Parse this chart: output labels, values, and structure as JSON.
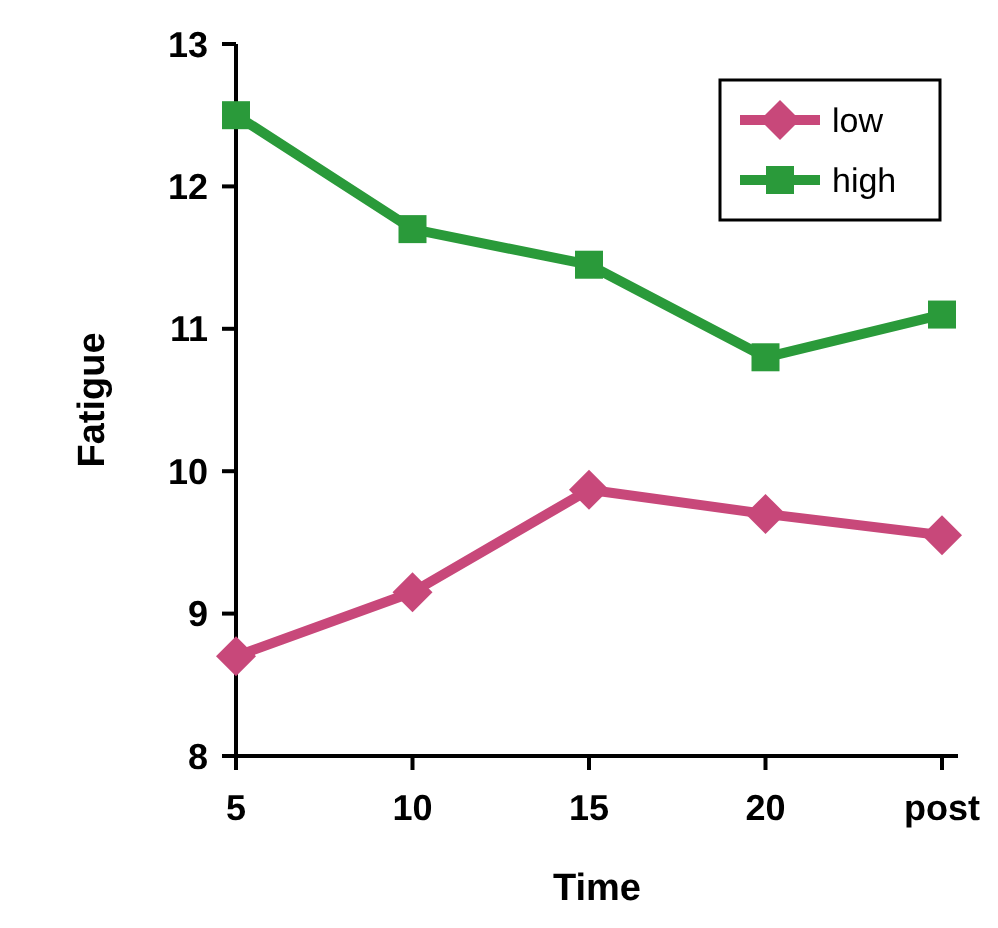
{
  "chart_data": {
    "type": "line",
    "xlabel": "Time",
    "ylabel": "Fatigue",
    "categories": [
      "5",
      "10",
      "15",
      "20",
      "post"
    ],
    "series": [
      {
        "name": "low",
        "color": "#c8487a",
        "marker": "diamond",
        "values": [
          8.7,
          9.15,
          9.87,
          9.7,
          9.55
        ]
      },
      {
        "name": "high",
        "color": "#2a9a3a",
        "marker": "square",
        "values": [
          12.5,
          11.7,
          11.45,
          10.8,
          11.1
        ]
      }
    ],
    "ylim": [
      8,
      13
    ],
    "yticks": [
      8,
      9,
      10,
      11,
      12,
      13
    ],
    "grid": false,
    "legend": "top right"
  }
}
